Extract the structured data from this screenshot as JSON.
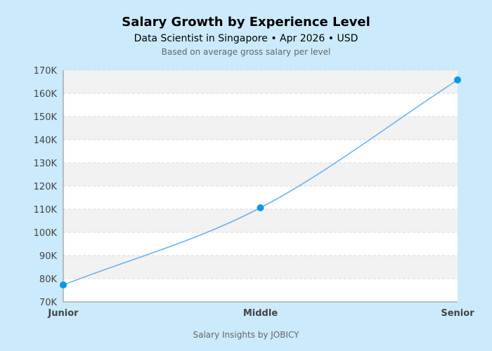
{
  "chart_data": {
    "type": "line",
    "title": "Salary Growth by Experience Level",
    "subtitle": "Data Scientist in Singapore • Apr 2026 • USD",
    "note": "Based on average gross salary per level",
    "footer": "Salary Insights by JOBICY",
    "categories": [
      "Junior",
      "Middle",
      "Senior"
    ],
    "values": [
      77300,
      110600,
      165800
    ],
    "ylim": [
      70000,
      170000
    ],
    "yticks": [
      70000,
      80000,
      90000,
      100000,
      110000,
      120000,
      130000,
      140000,
      150000,
      160000,
      170000
    ],
    "ytick_labels": [
      "70K",
      "80K",
      "90K",
      "100K",
      "110K",
      "120K",
      "130K",
      "140K",
      "150K",
      "160K",
      "170K"
    ],
    "grid": true,
    "legend": "none",
    "colors": {
      "line": "#6cb2f0",
      "marker": "#0898e8",
      "band": "#f2f2f2",
      "background": "#cbeafb"
    }
  }
}
